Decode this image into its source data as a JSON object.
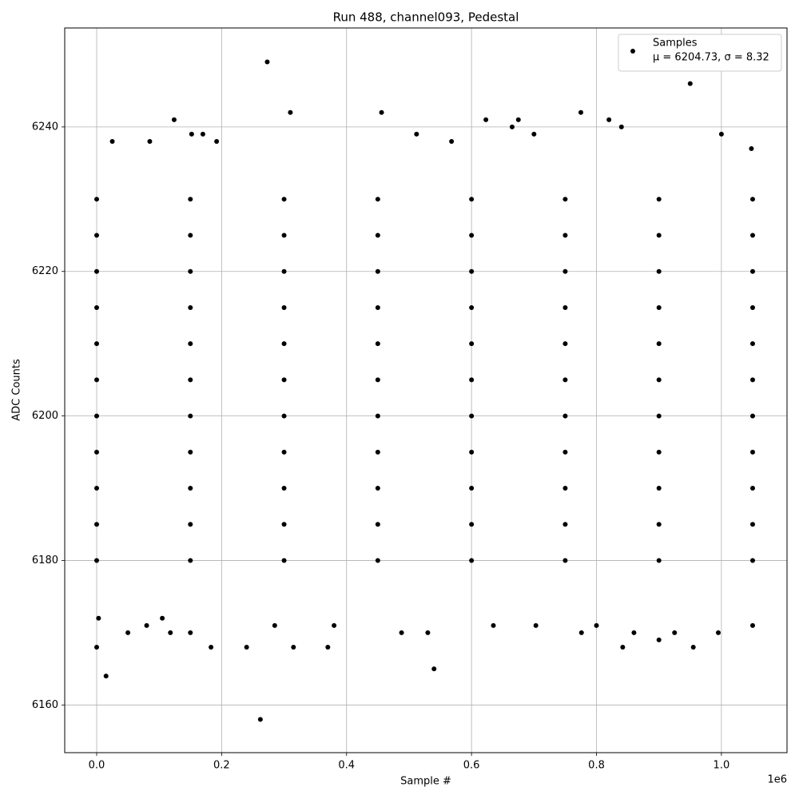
{
  "chart_data": {
    "type": "scatter",
    "title": "Run 488, channel093, Pedestal",
    "x_label": "Sample #",
    "y_label": "ADC Counts",
    "x_offset_label": "1e6",
    "xlim": [
      -51150,
      1105000
    ],
    "ylim": [
      6153.4,
      6253.7
    ],
    "xticks": [
      {
        "value": 0,
        "label": "0.0"
      },
      {
        "value": 200000,
        "label": "0.2"
      },
      {
        "value": 400000,
        "label": "0.4"
      },
      {
        "value": 600000,
        "label": "0.6"
      },
      {
        "value": 800000,
        "label": "0.8"
      },
      {
        "value": 1000000,
        "label": "1.0"
      }
    ],
    "yticks": [
      6160,
      6180,
      6200,
      6220,
      6240
    ],
    "grid": true,
    "legend_position": "upper right",
    "series": [
      {
        "name": "Samples",
        "legend_stats": "μ = 6204.73, σ = 8.32",
        "color": "#000000",
        "x": [
          0,
          3000,
          15000,
          25000,
          50000,
          80000,
          85000,
          105000,
          118000,
          124000,
          150000,
          152000,
          170000,
          183000,
          192000,
          240000,
          262000,
          273000,
          285000,
          310000,
          315000,
          370000,
          380000,
          456000,
          488000,
          512000,
          530000,
          540000,
          568000,
          623000,
          635000,
          665000,
          675000,
          700000,
          703000,
          775000,
          776000,
          800000,
          820000,
          840000,
          842000,
          860000,
          900000,
          925000,
          950000,
          955000,
          995000,
          1000000,
          1048000,
          1050000,
          0,
          150000,
          300000,
          450000,
          600000,
          750000,
          900000,
          1050000,
          0,
          150000,
          300000,
          450000,
          600000,
          750000,
          900000,
          1050000,
          0,
          150000,
          300000,
          450000,
          600000,
          750000,
          900000,
          1050000,
          0,
          150000,
          300000,
          450000,
          600000,
          750000,
          900000,
          1050000,
          0,
          150000,
          300000,
          450000,
          600000,
          750000,
          900000,
          1050000,
          0,
          150000,
          300000,
          450000,
          600000,
          750000,
          900000,
          1050000,
          0,
          150000,
          300000,
          450000,
          600000,
          750000,
          900000,
          1050000,
          0,
          150000,
          300000,
          450000,
          600000,
          750000,
          900000,
          1050000,
          0,
          150000,
          300000,
          450000,
          600000,
          750000,
          900000,
          1050000,
          0,
          150000,
          300000,
          450000,
          600000,
          750000,
          900000,
          1050000,
          0,
          150000,
          300000,
          450000,
          600000,
          750000,
          900000,
          1050000
        ],
        "values": [
          6168,
          6172,
          6164,
          6238,
          6170,
          6171,
          6238,
          6172,
          6170,
          6241,
          6170,
          6239,
          6239,
          6168,
          6238,
          6168,
          6158,
          6249,
          6171,
          6242,
          6168,
          6168,
          6171,
          6242,
          6170,
          6239,
          6170,
          6165,
          6238,
          6241,
          6171,
          6240,
          6241,
          6239,
          6171,
          6242,
          6170,
          6171,
          6241,
          6240,
          6168,
          6170,
          6169,
          6170,
          6246,
          6168,
          6170,
          6239,
          6237,
          6171,
          6180,
          6180,
          6180,
          6180,
          6180,
          6180,
          6180,
          6180,
          6185,
          6185,
          6185,
          6185,
          6185,
          6185,
          6185,
          6185,
          6190,
          6190,
          6190,
          6190,
          6190,
          6190,
          6190,
          6190,
          6195,
          6195,
          6195,
          6195,
          6195,
          6195,
          6195,
          6195,
          6200,
          6200,
          6200,
          6200,
          6200,
          6200,
          6200,
          6200,
          6205,
          6205,
          6205,
          6205,
          6205,
          6205,
          6205,
          6205,
          6210,
          6210,
          6210,
          6210,
          6210,
          6210,
          6210,
          6210,
          6215,
          6215,
          6215,
          6215,
          6215,
          6215,
          6215,
          6215,
          6220,
          6220,
          6220,
          6220,
          6220,
          6220,
          6220,
          6220,
          6225,
          6225,
          6225,
          6225,
          6225,
          6225,
          6225,
          6225,
          6230,
          6230,
          6230,
          6230,
          6230,
          6230,
          6230,
          6230
        ]
      }
    ]
  }
}
